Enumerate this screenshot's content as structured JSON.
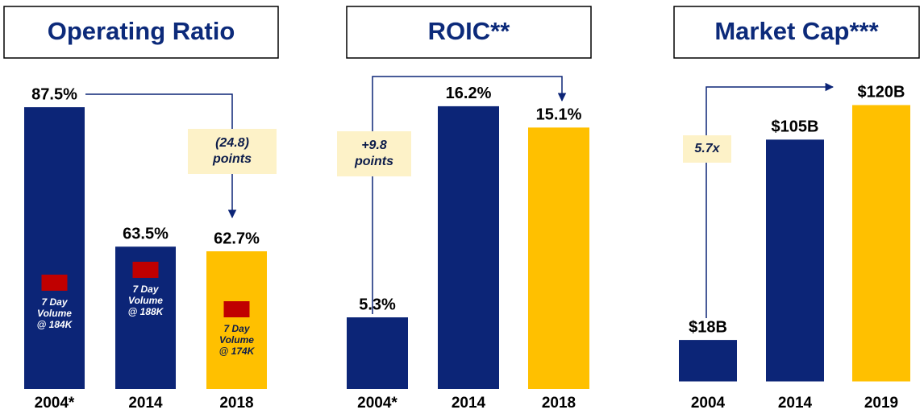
{
  "chart_data": [
    {
      "type": "bar",
      "title": "Operating Ratio",
      "categories": [
        "2004*",
        "2014",
        "2018"
      ],
      "values": [
        87.5,
        63.5,
        62.7
      ],
      "value_labels": [
        "87.5%",
        "63.5%",
        "62.7%"
      ],
      "colors": [
        "#0c2577",
        "#0c2577",
        "#ffc000"
      ],
      "ylim": [
        39,
        95
      ],
      "annotation": [
        "(24.8)",
        "points"
      ],
      "notes": [
        [
          "7 Day",
          "Volume",
          "@ 184K"
        ],
        [
          "7 Day",
          "Volume",
          "@ 188K"
        ],
        [
          "7 Day",
          "Volume",
          "@ 174K"
        ]
      ]
    },
    {
      "type": "bar",
      "title": "ROIC**",
      "categories": [
        "2004*",
        "2014",
        "2018"
      ],
      "values": [
        5.3,
        16.2,
        15.1
      ],
      "value_labels": [
        "5.3%",
        "16.2%",
        "15.1%"
      ],
      "colors": [
        "#0c2577",
        "#0c2577",
        "#ffc000"
      ],
      "ylim": [
        1.6,
        18.4
      ],
      "annotation": [
        "+9.8",
        "points"
      ]
    },
    {
      "type": "bar",
      "title": "Market Cap***",
      "categories": [
        "2004",
        "2014",
        "2019"
      ],
      "values": [
        18,
        105,
        120
      ],
      "value_labels": [
        "$18B",
        "$105B",
        "$120B"
      ],
      "colors": [
        "#0c2577",
        "#0c2577",
        "#ffc000"
      ],
      "ylim": [
        -3.3,
        138
      ],
      "annotation": [
        "5.7x"
      ]
    }
  ]
}
